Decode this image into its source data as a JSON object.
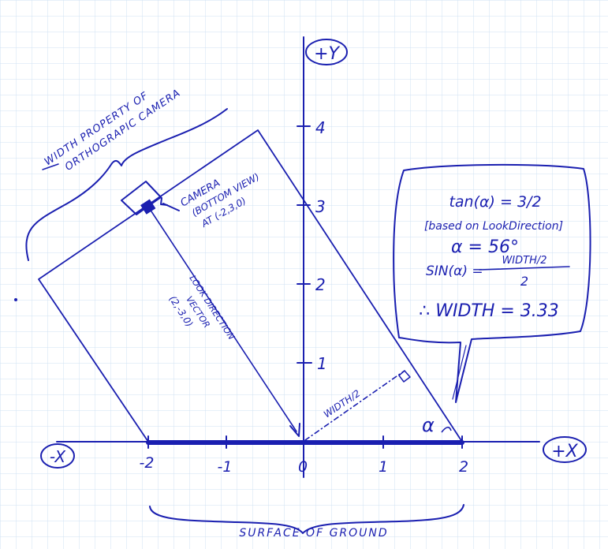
{
  "axes": {
    "pos_y": "+Y",
    "pos_x": "+X",
    "neg_x": "-X",
    "x_ticks": [
      "-2",
      "-1",
      "0",
      "1",
      "2"
    ],
    "y_ticks": [
      "1",
      "2",
      "3",
      "4"
    ]
  },
  "labels": {
    "width_property": [
      "WIDTH PROPERTY OF",
      "ORTHOGRAPIC CAMERA"
    ],
    "camera": [
      "CAMERA",
      "(BOTTOM VIEW)",
      "AT (-2,3,0)"
    ],
    "look_direction": [
      "LOOK DIRECTION",
      "VECTOR",
      "(2,-3,0)"
    ],
    "half_width": "WIDTH/2",
    "angle": "α",
    "surface": "SURFACE OF GROUND"
  },
  "note": {
    "line1": "tan(α) = 3/2",
    "line2": "[based on LookDirection]",
    "line3": "α = 56°",
    "line4_left": "SIN(α) =",
    "line4_num": "WIDTH/2",
    "line4_den": "2",
    "line5": "∴ WIDTH = 3.33"
  },
  "colors": {
    "ink": "#1a1fb0",
    "grid": "#cfe2f3",
    "paper": "#ffffff"
  }
}
